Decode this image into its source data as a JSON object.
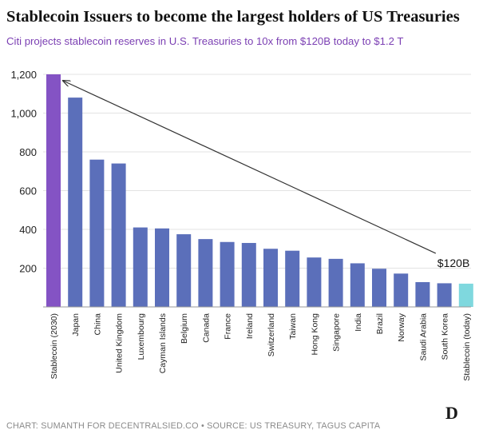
{
  "header": {
    "title": "Stablecoin Issuers to become the largest holders of US Treasuries",
    "subtitle": "Citi projects stablecoin reserves in U.S. Treasuries to 10x from $120B today to $1.2 T"
  },
  "footer": {
    "credit": "CHART: SUMANTH FOR DECENTRALSIED.CO • SOURCE: US TREASURY, TAGUS CAPITA",
    "logo_text": "D"
  },
  "colors": {
    "default_bar": "#5b6fba",
    "projection_bar": "#8453c4",
    "current_bar": "#7fd8de",
    "grid": "#e3e3e3",
    "text": "#222222",
    "subtitle": "#7b3fb3"
  },
  "chart_data": {
    "type": "bar",
    "title": "Stablecoin Issuers to become the largest holders of US Treasuries",
    "subtitle": "Citi projects stablecoin reserves in U.S. Treasuries to 10x from $120B today to $1.2 T",
    "xlabel": "",
    "ylabel": "",
    "ylim": [
      0,
      1200
    ],
    "yticks": [
      200,
      400,
      600,
      800,
      1000,
      1200
    ],
    "ytick_labels": [
      "200",
      "400",
      "600",
      "800",
      "1,000",
      "1,200"
    ],
    "grid": true,
    "legend": "none",
    "categories": [
      "Stablecoin (2030)",
      "Japan",
      "China",
      "United Kingdom",
      "Luxembourg",
      "Cayman Islands",
      "Belgium",
      "Canada",
      "France",
      "Ireland",
      "Switzerland",
      "Taiwan",
      "Hong Kong",
      "Singapore",
      "India",
      "Brazil",
      "Norway",
      "Saudi Arabia",
      "South Korea",
      "Stablecoin (today)"
    ],
    "values": [
      1200,
      1080,
      760,
      740,
      410,
      405,
      375,
      350,
      335,
      330,
      300,
      290,
      255,
      248,
      225,
      197,
      172,
      128,
      122,
      120
    ],
    "bar_colors": [
      "#8453c4",
      "#5b6fba",
      "#5b6fba",
      "#5b6fba",
      "#5b6fba",
      "#5b6fba",
      "#5b6fba",
      "#5b6fba",
      "#5b6fba",
      "#5b6fba",
      "#5b6fba",
      "#5b6fba",
      "#5b6fba",
      "#5b6fba",
      "#5b6fba",
      "#5b6fba",
      "#5b6fba",
      "#5b6fba",
      "#5b6fba",
      "#7fd8de"
    ],
    "annotation": {
      "text": "$120B",
      "type": "arrow",
      "from_category": "Stablecoin (today)",
      "to_category": "Stablecoin (2030)"
    }
  }
}
